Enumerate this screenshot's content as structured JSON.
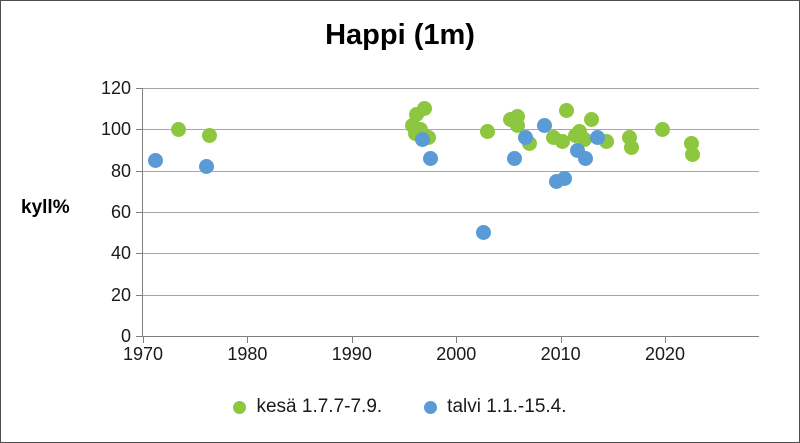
{
  "title": "Happi (1m)",
  "chart_data": {
    "type": "scatter",
    "title": "Happi (1m)",
    "xlabel": "",
    "ylabel": "kyll%",
    "xlim": [
      1970,
      2029
    ],
    "ylim": [
      0,
      120
    ],
    "x_ticks": [
      1970,
      1980,
      1990,
      2000,
      2010,
      2020
    ],
    "y_ticks": [
      0,
      20,
      40,
      60,
      80,
      100,
      120
    ],
    "grid": "horizontal",
    "legend_position": "bottom",
    "series": [
      {
        "name": "kesä 1.7.7-7.9.",
        "color": "#8dc63f",
        "points": [
          {
            "x": 1973.4,
            "y": 100
          },
          {
            "x": 1976.4,
            "y": 97
          },
          {
            "x": 1995.8,
            "y": 102
          },
          {
            "x": 1996.1,
            "y": 98
          },
          {
            "x": 1996.2,
            "y": 107
          },
          {
            "x": 1996.6,
            "y": 100
          },
          {
            "x": 1997.0,
            "y": 110
          },
          {
            "x": 1997.3,
            "y": 96
          },
          {
            "x": 2003.0,
            "y": 99
          },
          {
            "x": 2005.2,
            "y": 105
          },
          {
            "x": 2005.9,
            "y": 106
          },
          {
            "x": 2005.9,
            "y": 102
          },
          {
            "x": 2007.0,
            "y": 93
          },
          {
            "x": 2009.3,
            "y": 96
          },
          {
            "x": 2010.2,
            "y": 94
          },
          {
            "x": 2010.6,
            "y": 109
          },
          {
            "x": 2011.4,
            "y": 97
          },
          {
            "x": 2011.8,
            "y": 99
          },
          {
            "x": 2012.3,
            "y": 95
          },
          {
            "x": 2013.0,
            "y": 105
          },
          {
            "x": 2014.4,
            "y": 94
          },
          {
            "x": 2016.6,
            "y": 96
          },
          {
            "x": 2016.8,
            "y": 91
          },
          {
            "x": 2019.8,
            "y": 100
          },
          {
            "x": 2022.5,
            "y": 93
          },
          {
            "x": 2022.6,
            "y": 88
          }
        ]
      },
      {
        "name": "talvi 1.1.-15.4.",
        "color": "#5b9bd5",
        "points": [
          {
            "x": 1971.2,
            "y": 85
          },
          {
            "x": 1976.1,
            "y": 82
          },
          {
            "x": 1996.8,
            "y": 95
          },
          {
            "x": 1997.5,
            "y": 86
          },
          {
            "x": 2002.6,
            "y": 50
          },
          {
            "x": 2005.6,
            "y": 86
          },
          {
            "x": 2006.6,
            "y": 96
          },
          {
            "x": 2008.5,
            "y": 102
          },
          {
            "x": 2009.6,
            "y": 75
          },
          {
            "x": 2010.4,
            "y": 76
          },
          {
            "x": 2011.6,
            "y": 90
          },
          {
            "x": 2012.4,
            "y": 86
          },
          {
            "x": 2013.5,
            "y": 96
          }
        ]
      }
    ],
    "colors": {
      "gridline": "#a6a6a6",
      "axis": "#808080",
      "text": "#1a1a1a",
      "border": "#4d4d4d"
    }
  }
}
